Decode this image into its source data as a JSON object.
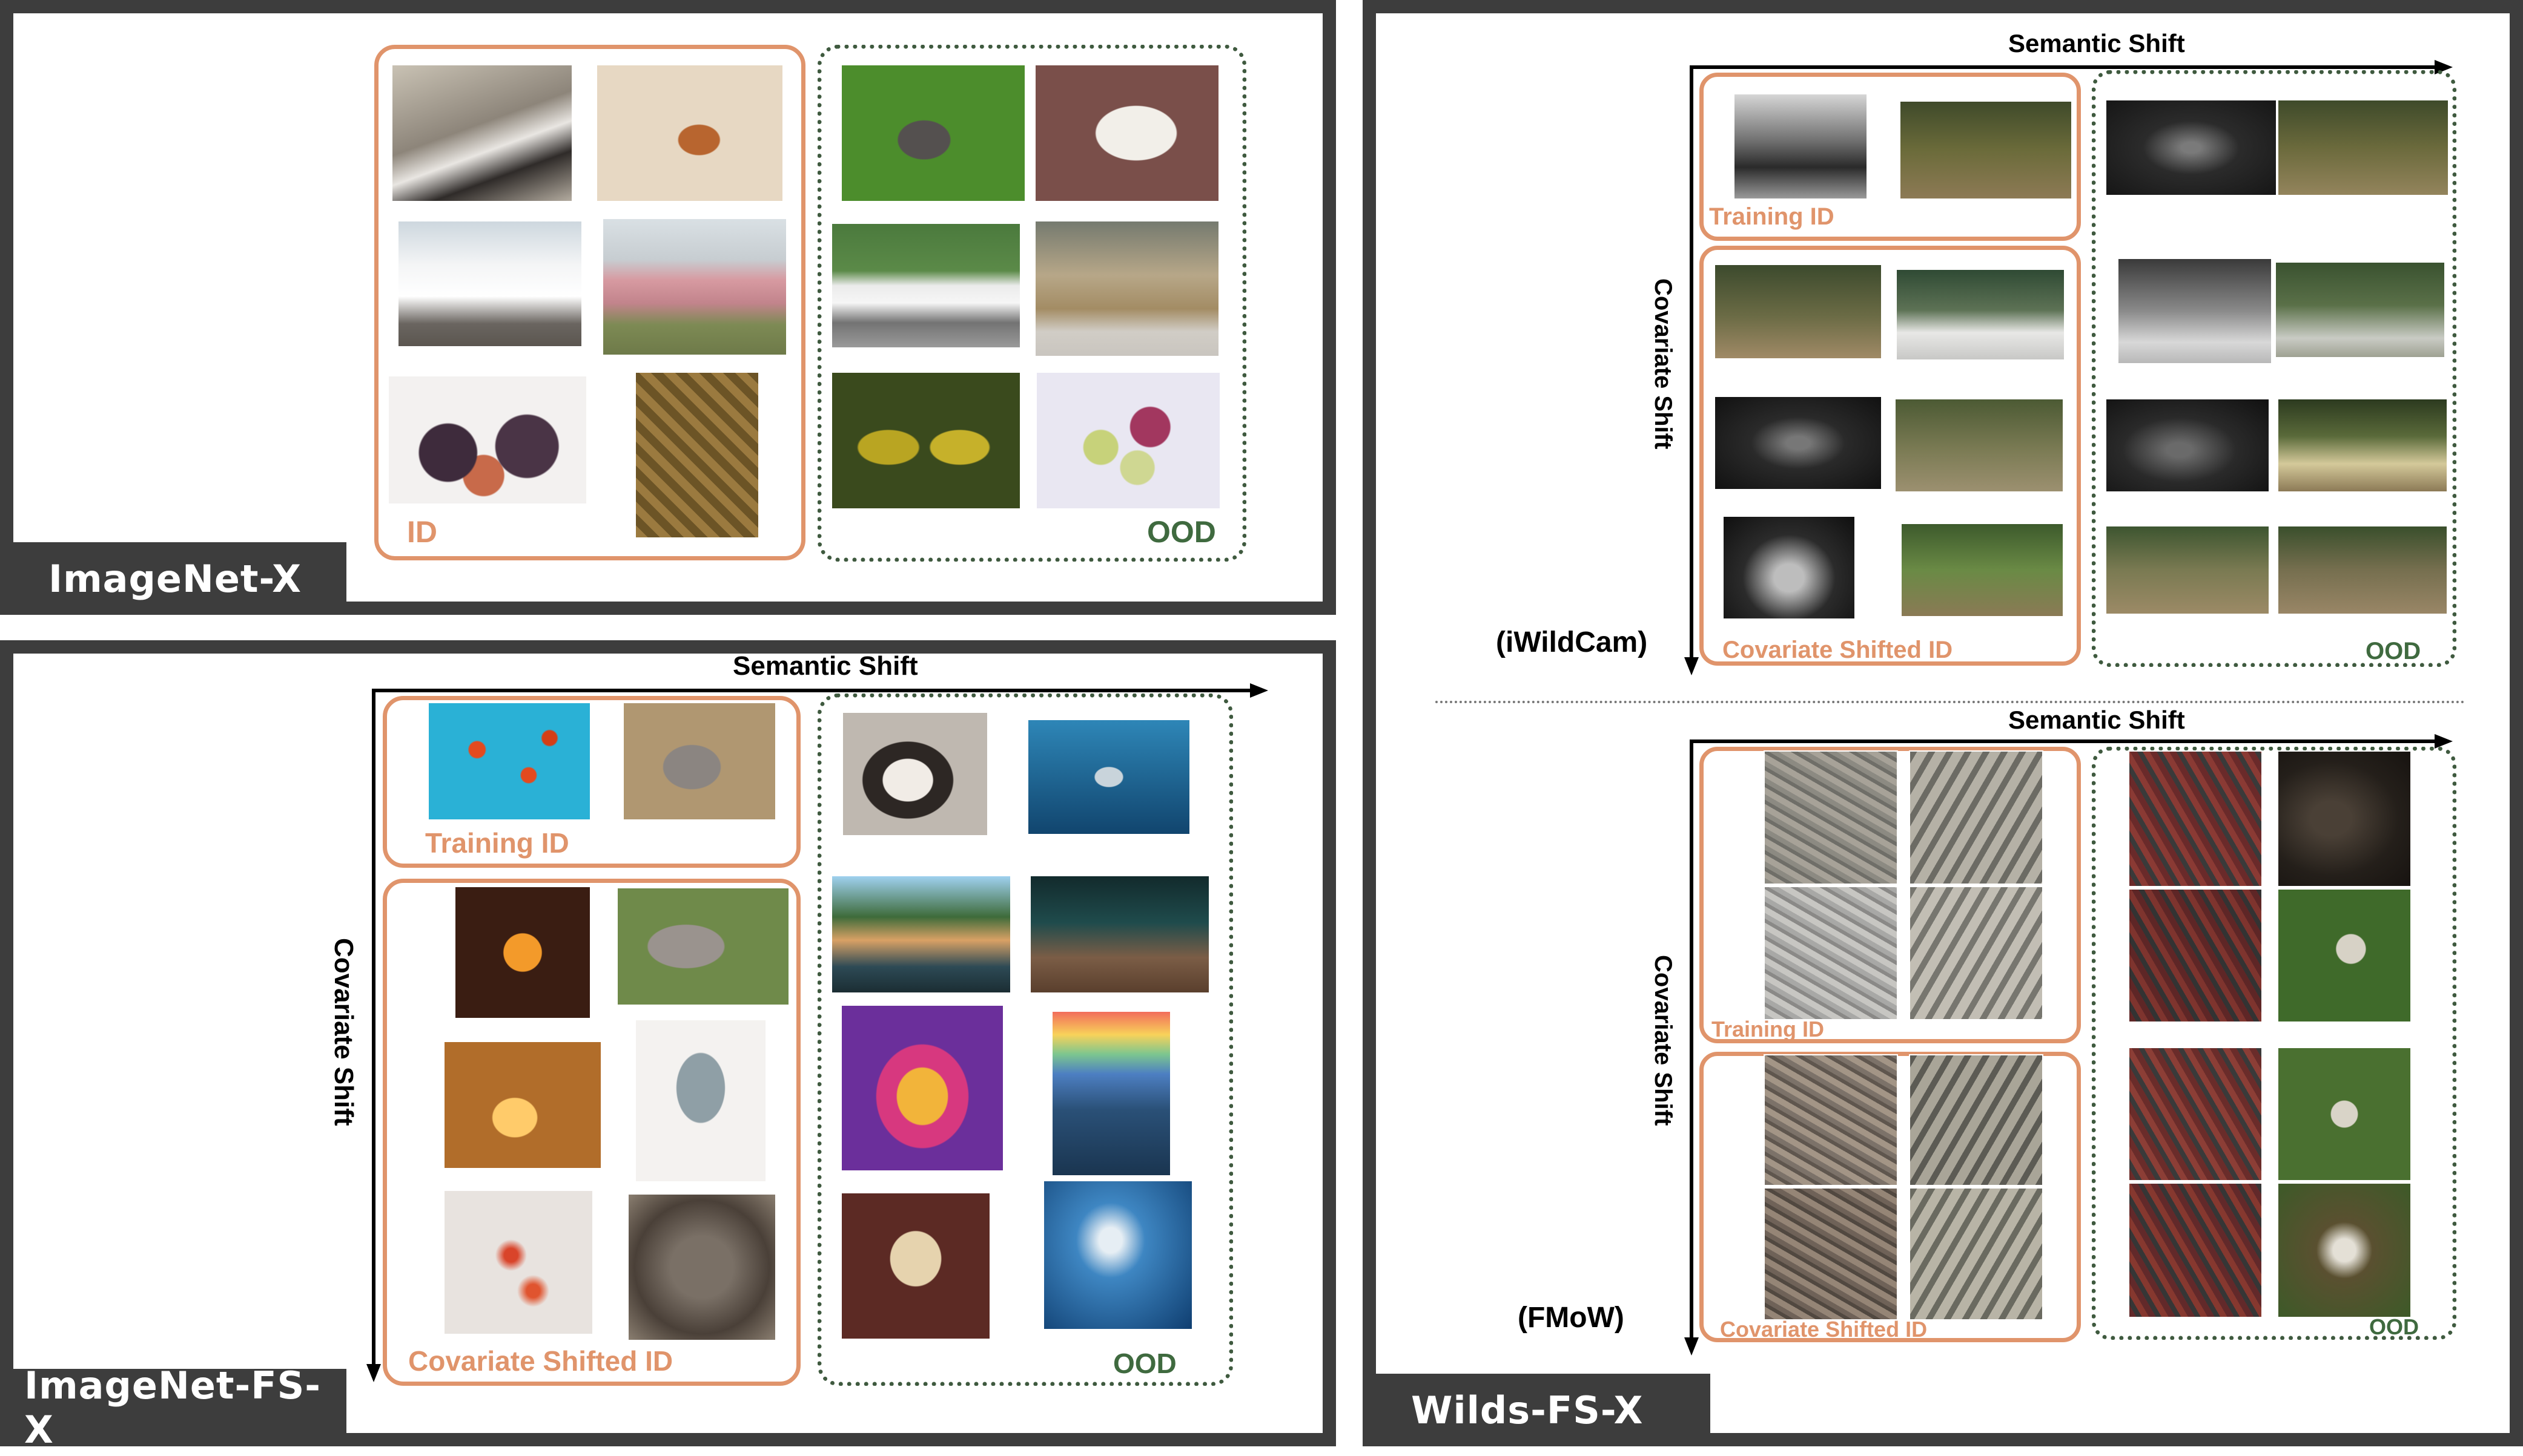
{
  "panels": {
    "imagenet_x": {
      "tag": "ImageNet-X",
      "id_label": "ID",
      "ood_label": "OOD"
    },
    "imagenet_fs_x": {
      "tag": "ImageNet-FS-X",
      "semantic_axis": "Semantic Shift",
      "covariate_axis": "Covariate Shift",
      "training_id_label": "Training ID",
      "covariate_id_label": "Covariate Shifted ID",
      "ood_label": "OOD"
    },
    "wilds_fs_x": {
      "tag": "Wilds-FS-X",
      "iwildcam": {
        "dataset": "(iWildCam)",
        "semantic_axis": "Semantic Shift",
        "covariate_axis": "Covariate Shift",
        "training_id_label": "Training ID",
        "covariate_id_label": "Covariate Shifted ID",
        "ood_label": "OOD"
      },
      "fmow": {
        "dataset": "(FMoW)",
        "semantic_axis": "Semantic Shift",
        "covariate_axis": "Covariate Shift",
        "training_id_label": "Training ID",
        "covariate_id_label": "Covariate Shifted ID",
        "ood_label": "OOD"
      }
    }
  },
  "photo_icons": {
    "imagenet_x_id": [
      "dalmatian-photo-icon",
      "corgi-photo-icon",
      "ambulance-photo-icon",
      "pink-car-photo-icon",
      "figs-photo-icon",
      "pineapples-photo-icon"
    ],
    "imagenet_x_ood": [
      "hairless-dog-photo-icon",
      "white-dog-photo-icon",
      "limousine-photo-icon",
      "vw-van-photo-icon",
      "jackfruit-photo-icon",
      "custard-apple-photo-icon"
    ],
    "fs_training_id": [
      "goldfish-photo-icon",
      "koala-photo-icon"
    ],
    "fs_covariate_id": [
      "goldfish-painting-icon",
      "koala-photo-icon",
      "goldfish-art-icon",
      "koala-drawing-icon",
      "goldfish-blurred-icon",
      "koala-blurred-icon"
    ],
    "fs_ood": [
      "chihuahua-photo-icon",
      "shark-photo-icon",
      "chihuahua-outdoor-icon",
      "shark-aquarium-icon",
      "chihuahua-painting-icon",
      "shark-painting-icon",
      "chihuahua-sketch-icon",
      "shark-blurred-icon"
    ]
  }
}
